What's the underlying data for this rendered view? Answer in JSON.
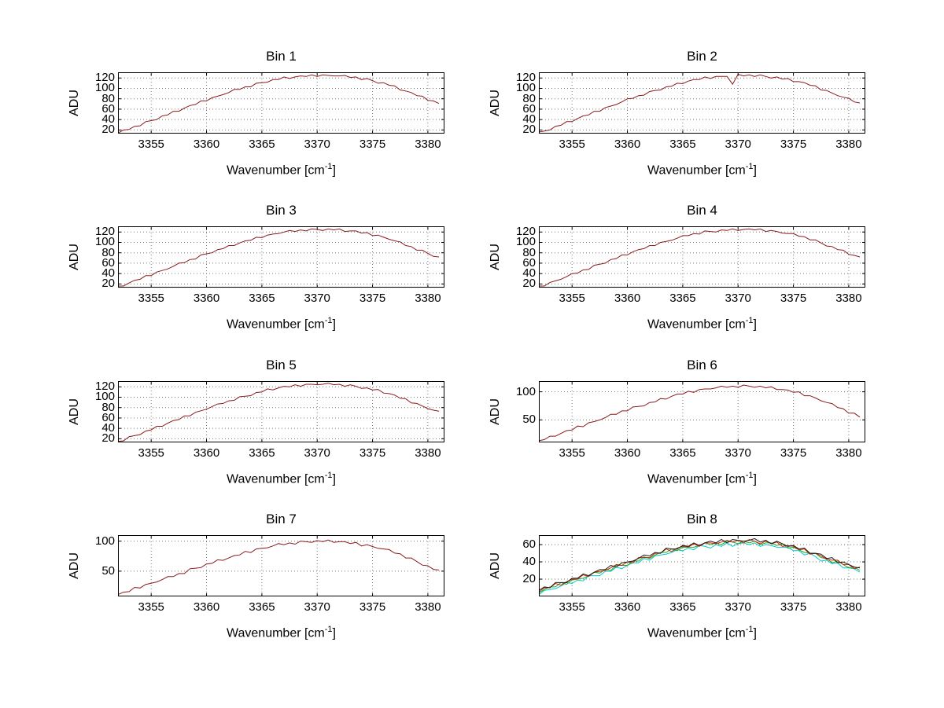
{
  "chart_data": {
    "type": "line",
    "figure_background": "#ffffff",
    "shared_axes": {
      "x_start": 3352,
      "x_step": 0.5,
      "x_points": 59,
      "x_lim": [
        3352,
        3381.5
      ],
      "x_ticks": [
        3355,
        3360,
        3365,
        3370,
        3375,
        3380
      ],
      "xlabel_pre": "Wavenumber [cm",
      "xlabel_sup": "-1",
      "xlabel_post": "]",
      "ylabel": "ADU",
      "grid_color": "#777777",
      "axis_color": "#000000"
    },
    "charts": [
      {
        "title": "Bin 1",
        "y_ticks": [
          20,
          40,
          60,
          80,
          100,
          120
        ],
        "y_lim": [
          13,
          131
        ],
        "series": [
          {
            "name": "spectrum",
            "color": "#8b1a1a",
            "values": [
              14,
              20,
              21,
              27,
              28,
              36,
              38,
              40,
              47,
              49,
              56,
              56,
              62,
              67,
              69,
              76,
              76,
              82,
              85,
              88,
              92,
              98,
              98,
              103,
              103,
              110,
              111,
              112,
              117,
              117,
              122,
              119,
              122,
              124,
              123,
              126,
              123,
              126,
              125,
              124,
              124,
              125,
              121,
              122,
              117,
              119,
              115,
              110,
              111,
              106,
              105,
              97,
              95,
              92,
              86,
              85,
              77,
              76,
              71
            ]
          }
        ]
      },
      {
        "title": "Bin 2",
        "y_ticks": [
          20,
          40,
          60,
          80,
          100,
          120
        ],
        "y_lim": [
          13,
          131
        ],
        "series": [
          {
            "name": "spectrum",
            "color": "#8b1a1a",
            "values": [
              16,
              18,
              20,
              27,
              29,
              36,
              36,
              42,
              47,
              49,
              56,
              56,
              63,
              66,
              69,
              74,
              80,
              81,
              86,
              87,
              94,
              96,
              97,
              103,
              104,
              110,
              109,
              114,
              117,
              117,
              122,
              119,
              123,
              123,
              123,
              108,
              127,
              124,
              126,
              123,
              126,
              123,
              120,
              122,
              118,
              119,
              113,
              113,
              111,
              106,
              105,
              97,
              96,
              91,
              86,
              83,
              81,
              74,
              72
            ]
          }
        ]
      },
      {
        "title": "Bin 3",
        "y_ticks": [
          20,
          40,
          60,
          80,
          100,
          120
        ],
        "y_lim": [
          13,
          131
        ],
        "series": [
          {
            "name": "spectrum",
            "color": "#8b1a1a",
            "values": [
              16,
              16,
              22,
              27,
              29,
              36,
              36,
              43,
              46,
              49,
              54,
              60,
              61,
              67,
              68,
              76,
              78,
              80,
              86,
              88,
              94,
              94,
              99,
              103,
              104,
              110,
              109,
              114,
              116,
              117,
              120,
              123,
              121,
              124,
              122,
              126,
              125,
              123,
              126,
              124,
              126,
              121,
              122,
              122,
              118,
              119,
              113,
              114,
              110,
              106,
              103,
              101,
              94,
              92,
              85,
              85,
              79,
              73,
              72
            ]
          }
        ]
      },
      {
        "title": "Bin 4",
        "y_ticks": [
          20,
          40,
          60,
          80,
          100,
          120
        ],
        "y_lim": [
          13,
          131
        ],
        "series": [
          {
            "name": "spectrum",
            "color": "#8b1a1a",
            "values": [
              16,
              16,
              23,
              26,
              29,
              34,
              40,
              41,
              47,
              48,
              56,
              58,
              60,
              67,
              69,
              76,
              76,
              82,
              86,
              88,
              94,
              94,
              100,
              102,
              104,
              108,
              113,
              113,
              117,
              116,
              122,
              121,
              120,
              124,
              123,
              126,
              123,
              125,
              126,
              124,
              126,
              121,
              123,
              121,
              118,
              117,
              117,
              112,
              111,
              105,
              105,
              99,
              93,
              92,
              86,
              85,
              77,
              75,
              72
            ]
          }
        ]
      },
      {
        "title": "Bin 5",
        "y_ticks": [
          20,
          40,
          60,
          80,
          100,
          120
        ],
        "y_lim": [
          13,
          131
        ],
        "series": [
          {
            "name": "spectrum",
            "color": "#8b1a1a",
            "values": [
              15,
              16,
              24,
              26,
              28,
              35,
              37,
              44,
              44,
              50,
              55,
              57,
              64,
              64,
              71,
              74,
              77,
              82,
              87,
              88,
              93,
              94,
              101,
              102,
              103,
              109,
              110,
              116,
              114,
              118,
              121,
              120,
              124,
              121,
              125,
              125,
              124,
              125,
              127,
              124,
              125,
              121,
              124,
              121,
              117,
              118,
              114,
              115,
              108,
              107,
              104,
              98,
              97,
              89,
              88,
              83,
              78,
              75,
              73
            ]
          }
        ]
      },
      {
        "title": "Bin 6",
        "y_ticks": [
          50,
          100
        ],
        "y_lim": [
          10,
          119
        ],
        "series": [
          {
            "name": "spectrum",
            "color": "#8b1a1a",
            "values": [
              13,
              15,
              21,
              21,
              26,
              31,
              32,
              39,
              38,
              45,
              47,
              50,
              54,
              60,
              60,
              66,
              66,
              73,
              74,
              75,
              81,
              82,
              88,
              87,
              92,
              96,
              96,
              101,
              99,
              104,
              105,
              105,
              107,
              110,
              108,
              110,
              108,
              112,
              110,
              108,
              110,
              107,
              109,
              104,
              104,
              103,
              99,
              100,
              93,
              93,
              89,
              84,
              81,
              79,
              72,
              70,
              62,
              62,
              55
            ]
          }
        ]
      },
      {
        "title": "Bin 7",
        "y_ticks": [
          50,
          100
        ],
        "y_lim": [
          8,
          110
        ],
        "series": [
          {
            "name": "spectrum",
            "color": "#8b1a1a",
            "values": [
              11,
              15,
              16,
              23,
              22,
              28,
              30,
              32,
              36,
              41,
              41,
              46,
              46,
              54,
              55,
              56,
              62,
              63,
              69,
              68,
              72,
              76,
              77,
              83,
              81,
              87,
              88,
              89,
              92,
              96,
              94,
              97,
              95,
              100,
              99,
              98,
              101,
              99,
              102,
              98,
              99,
              99,
              96,
              98,
              92,
              94,
              91,
              88,
              87,
              86,
              80,
              79,
              72,
              72,
              66,
              60,
              59,
              53,
              52
            ]
          }
        ]
      },
      {
        "title": "Bin 8",
        "y_ticks": [
          20,
          40,
          60
        ],
        "y_lim": [
          0,
          71
        ],
        "series": [
          {
            "name": "series-cyan",
            "color": "#00cccc",
            "values": [
              2,
              7,
              8,
              9,
              12,
              16,
              15,
              19,
              18,
              24,
              24,
              24,
              29,
              29,
              34,
              32,
              36,
              39,
              39,
              44,
              42,
              47,
              48,
              49,
              51,
              54,
              53,
              56,
              54,
              59,
              58,
              56,
              60,
              58,
              62,
              58,
              61,
              62,
              60,
              62,
              58,
              60,
              59,
              57,
              57,
              57,
              53,
              53,
              48,
              50,
              46,
              41,
              42,
              38,
              39,
              33,
              33,
              32,
              28
            ]
          },
          {
            "name": "series-green",
            "color": "#22aa22",
            "values": [
              4,
              8,
              11,
              11,
              16,
              14,
              19,
              20,
              21,
              24,
              28,
              27,
              31,
              30,
              36,
              36,
              36,
              41,
              41,
              46,
              44,
              48,
              51,
              51,
              55,
              53,
              57,
              57,
              57,
              59,
              62,
              60,
              62,
              60,
              64,
              63,
              61,
              64,
              62,
              64,
              60,
              62,
              62,
              59,
              61,
              56,
              57,
              54,
              51,
              50,
              50,
              45,
              44,
              39,
              41,
              37,
              33,
              34,
              30
            ]
          },
          {
            "name": "series-red",
            "color": "#cc2200",
            "values": [
              5,
              10,
              10,
              15,
              13,
              17,
              20,
              20,
              25,
              23,
              28,
              29,
              30,
              33,
              37,
              36,
              40,
              39,
              45,
              45,
              45,
              50,
              50,
              55,
              52,
              56,
              58,
              57,
              61,
              58,
              62,
              62,
              61,
              63,
              65,
              63,
              65,
              62,
              66,
              64,
              61,
              64,
              61,
              63,
              58,
              59,
              58,
              54,
              55,
              49,
              50,
              47,
              43,
              42,
              42,
              37,
              37,
              32,
              34
            ]
          },
          {
            "name": "series-black",
            "color": "#1a1a1a",
            "values": [
              7,
              11,
              10,
              16,
              16,
              16,
              21,
              21,
              26,
              24,
              28,
              31,
              31,
              36,
              34,
              39,
              40,
              41,
              44,
              48,
              47,
              51,
              50,
              56,
              55,
              55,
              59,
              58,
              62,
              59,
              62,
              64,
              62,
              66,
              62,
              66,
              65,
              64,
              65,
              67,
              63,
              65,
              61,
              64,
              61,
              58,
              59,
              55,
              56,
              50,
              50,
              49,
              44,
              45,
              39,
              40,
              37,
              34,
              33
            ]
          }
        ]
      }
    ]
  }
}
